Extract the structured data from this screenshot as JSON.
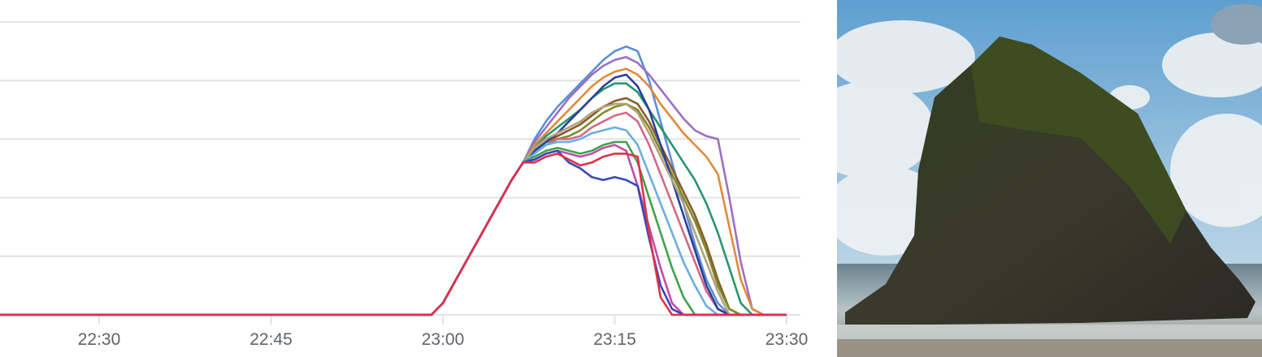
{
  "chart_data": {
    "type": "line",
    "title": "",
    "xlabel": "",
    "ylabel": "",
    "xlim": [
      "22:20",
      "23:30"
    ],
    "ylim": [
      0,
      5
    ],
    "grid": true,
    "legend": "none",
    "x_ticks": [
      "22:30",
      "22:45",
      "23:00",
      "23:15",
      "23:30"
    ],
    "x": [
      "22:20",
      "22:59",
      "23:00",
      "23:01",
      "23:02",
      "23:03",
      "23:04",
      "23:05",
      "23:06",
      "23:07",
      "23:08",
      "23:09",
      "23:10",
      "23:11",
      "23:12",
      "23:13",
      "23:14",
      "23:15",
      "23:16",
      "23:17",
      "23:18",
      "23:19",
      "23:20",
      "23:21",
      "23:22",
      "23:23",
      "23:24",
      "23:25",
      "23:26",
      "23:27",
      "23:28",
      "23:29"
    ],
    "series": [
      {
        "color": "#5b8ed6",
        "values": [
          0,
          0,
          0.2,
          0.55,
          0.9,
          1.25,
          1.6,
          1.95,
          2.3,
          2.6,
          3.0,
          3.3,
          3.55,
          3.75,
          3.95,
          4.15,
          4.35,
          4.5,
          4.58,
          4.5,
          4.0,
          3.3,
          2.6,
          1.9,
          1.2,
          0.6,
          0.2,
          0,
          0,
          0,
          0,
          0
        ]
      },
      {
        "color": "#9b6fc2",
        "values": [
          0,
          0,
          0.2,
          0.55,
          0.9,
          1.25,
          1.6,
          1.95,
          2.3,
          2.6,
          2.95,
          3.2,
          3.45,
          3.7,
          3.9,
          4.1,
          4.25,
          4.35,
          4.4,
          4.3,
          4.1,
          3.85,
          3.6,
          3.35,
          3.15,
          3.05,
          3.0,
          2.0,
          0.9,
          0.1,
          0,
          0
        ]
      },
      {
        "color": "#e08a3c",
        "values": [
          0,
          0,
          0.2,
          0.55,
          0.9,
          1.25,
          1.6,
          1.95,
          2.3,
          2.6,
          2.9,
          3.1,
          3.3,
          3.5,
          3.7,
          3.9,
          4.05,
          4.15,
          4.2,
          4.1,
          3.9,
          3.6,
          3.35,
          3.1,
          2.9,
          2.7,
          2.4,
          1.5,
          0.6,
          0.1,
          0,
          0
        ]
      },
      {
        "color": "#27956f",
        "values": [
          0,
          0,
          0.2,
          0.55,
          0.9,
          1.25,
          1.6,
          1.95,
          2.3,
          2.6,
          2.85,
          3.05,
          3.2,
          3.35,
          3.5,
          3.7,
          3.85,
          3.95,
          3.95,
          3.8,
          3.5,
          3.2,
          2.9,
          2.6,
          2.3,
          1.9,
          1.4,
          0.8,
          0.2,
          0,
          0,
          0
        ]
      },
      {
        "color": "#8a5a2b",
        "values": [
          0,
          0,
          0.2,
          0.55,
          0.9,
          1.25,
          1.6,
          1.95,
          2.3,
          2.6,
          2.8,
          2.95,
          3.05,
          3.15,
          3.25,
          3.4,
          3.55,
          3.65,
          3.7,
          3.6,
          3.3,
          2.9,
          2.5,
          2.1,
          1.7,
          1.2,
          0.6,
          0.1,
          0,
          0,
          0,
          0
        ]
      },
      {
        "color": "#7f8a2a",
        "values": [
          0,
          0,
          0.2,
          0.55,
          0.9,
          1.25,
          1.6,
          1.95,
          2.3,
          2.6,
          2.8,
          2.95,
          3.0,
          3.05,
          3.15,
          3.3,
          3.45,
          3.55,
          3.6,
          3.5,
          3.2,
          2.8,
          2.4,
          2.0,
          1.6,
          1.1,
          0.5,
          0.1,
          0,
          0,
          0,
          0
        ]
      },
      {
        "color": "#d06a86",
        "values": [
          0,
          0,
          0.2,
          0.55,
          0.9,
          1.25,
          1.6,
          1.95,
          2.3,
          2.6,
          2.75,
          2.9,
          3.0,
          3.0,
          3.05,
          3.2,
          3.3,
          3.4,
          3.45,
          3.3,
          2.9,
          2.4,
          1.9,
          1.4,
          0.9,
          0.4,
          0.1,
          0,
          0,
          0,
          0,
          0
        ]
      },
      {
        "color": "#2c3e9e",
        "values": [
          0,
          0,
          0.2,
          0.55,
          0.9,
          1.25,
          1.6,
          1.95,
          2.3,
          2.6,
          2.8,
          2.95,
          3.1,
          3.3,
          3.5,
          3.7,
          3.9,
          4.05,
          4.1,
          3.9,
          3.5,
          2.9,
          2.3,
          1.7,
          1.1,
          0.5,
          0.1,
          0,
          0,
          0,
          0,
          0
        ]
      },
      {
        "color": "#b3a27a",
        "values": [
          0,
          0,
          0.2,
          0.55,
          0.9,
          1.25,
          1.6,
          1.95,
          2.3,
          2.6,
          2.85,
          3.0,
          3.1,
          3.2,
          3.3,
          3.45,
          3.55,
          3.6,
          3.6,
          3.45,
          3.1,
          2.7,
          2.3,
          1.9,
          1.4,
          0.9,
          0.4,
          0,
          0,
          0,
          0,
          0
        ]
      },
      {
        "color": "#6aaee0",
        "values": [
          0,
          0,
          0.2,
          0.55,
          0.9,
          1.25,
          1.6,
          1.95,
          2.3,
          2.6,
          2.75,
          2.9,
          2.95,
          2.95,
          3.0,
          3.1,
          3.15,
          3.2,
          3.15,
          2.9,
          2.4,
          1.9,
          1.4,
          0.9,
          0.5,
          0.15,
          0,
          0,
          0,
          0,
          0,
          0
        ]
      },
      {
        "color": "#3fa34a",
        "values": [
          0,
          0,
          0.2,
          0.55,
          0.9,
          1.25,
          1.6,
          1.95,
          2.3,
          2.6,
          2.7,
          2.8,
          2.85,
          2.8,
          2.75,
          2.8,
          2.9,
          2.95,
          2.95,
          2.6,
          2.0,
          1.4,
          0.8,
          0.3,
          0,
          0,
          0,
          0,
          0,
          0,
          0,
          0
        ]
      },
      {
        "color": "#c24ca8",
        "values": [
          0,
          0,
          0.2,
          0.55,
          0.9,
          1.25,
          1.6,
          1.95,
          2.3,
          2.6,
          2.65,
          2.75,
          2.8,
          2.75,
          2.7,
          2.75,
          2.85,
          2.9,
          2.8,
          2.2,
          1.5,
          0.8,
          0.2,
          0,
          0,
          0,
          0,
          0,
          0,
          0,
          0,
          0
        ]
      },
      {
        "color": "#3b46b8",
        "values": [
          0,
          0,
          0.2,
          0.55,
          0.9,
          1.25,
          1.6,
          1.95,
          2.3,
          2.6,
          2.65,
          2.75,
          2.8,
          2.6,
          2.5,
          2.35,
          2.3,
          2.35,
          2.3,
          2.2,
          1.3,
          0.5,
          0.1,
          0,
          0,
          0,
          0,
          0,
          0,
          0,
          0,
          0
        ]
      },
      {
        "color": "#e0304a",
        "values": [
          0,
          0,
          0.2,
          0.55,
          0.9,
          1.25,
          1.6,
          1.95,
          2.3,
          2.6,
          2.6,
          2.7,
          2.75,
          2.65,
          2.55,
          2.6,
          2.7,
          2.75,
          2.75,
          2.7,
          1.4,
          0.3,
          0,
          0,
          0,
          0,
          0,
          0,
          0,
          0,
          0,
          0
        ]
      }
    ]
  },
  "colors": {
    "grid": "#dfe4e6",
    "axis_text": "#5f6368",
    "baseline": "#9b7fb5"
  },
  "photo": {
    "subject": "sea-stack-rock-on-beach"
  }
}
